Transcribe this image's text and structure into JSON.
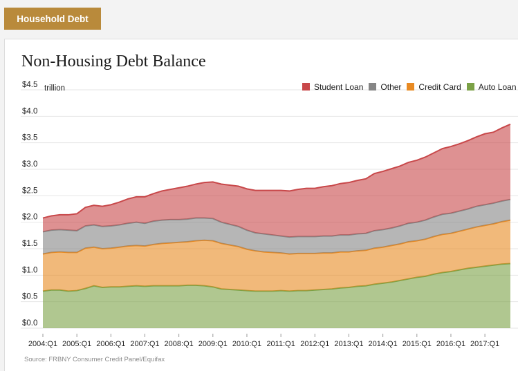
{
  "header": {
    "tab_label": "Household Debt"
  },
  "source": "Source: FRBNY Consumer Credit Panel/Equifax",
  "chart_data": {
    "type": "area",
    "stacked": true,
    "title": "Non-Housing Debt Balance",
    "ylabel": "trillion",
    "ylim": [
      0,
      4.5
    ],
    "yticks": [
      0,
      0.5,
      1.0,
      1.5,
      2.0,
      2.5,
      3.0,
      3.5,
      4.0,
      4.5
    ],
    "ytick_labels": [
      "$0.0",
      "$0.5",
      "$1.0",
      "$1.5",
      "$2.0",
      "$2.5",
      "$3.0",
      "$3.5",
      "$4.0",
      "$4.5"
    ],
    "xlim": [
      2004.0,
      2017.75
    ],
    "xticks": [
      2004,
      2005,
      2006,
      2007,
      2008,
      2009,
      2010,
      2011,
      2012,
      2013,
      2014,
      2015,
      2016,
      2017
    ],
    "xtick_labels": [
      "2004:Q1",
      "2005:Q1",
      "2006:Q1",
      "2007:Q1",
      "2008:Q1",
      "2009:Q1",
      "2010:Q1",
      "2011:Q1",
      "2012:Q1",
      "2013:Q1",
      "2014:Q1",
      "2015:Q1",
      "2016:Q1",
      "2017:Q1"
    ],
    "grid": true,
    "legend_position": "top-right",
    "x": [
      2004.0,
      2004.25,
      2004.5,
      2004.75,
      2005.0,
      2005.25,
      2005.5,
      2005.75,
      2006.0,
      2006.25,
      2006.5,
      2006.75,
      2007.0,
      2007.25,
      2007.5,
      2007.75,
      2008.0,
      2008.25,
      2008.5,
      2008.75,
      2009.0,
      2009.25,
      2009.5,
      2009.75,
      2010.0,
      2010.25,
      2010.5,
      2010.75,
      2011.0,
      2011.25,
      2011.5,
      2011.75,
      2012.0,
      2012.25,
      2012.5,
      2012.75,
      2013.0,
      2013.25,
      2013.5,
      2013.75,
      2014.0,
      2014.25,
      2014.5,
      2014.75,
      2015.0,
      2015.25,
      2015.5,
      2015.75,
      2016.0,
      2016.25,
      2016.5,
      2016.75,
      2017.0,
      2017.25,
      2017.5,
      2017.75
    ],
    "series": [
      {
        "name": "Auto Loan",
        "color": "#7ba146",
        "values": [
          0.7,
          0.72,
          0.72,
          0.7,
          0.71,
          0.75,
          0.8,
          0.77,
          0.78,
          0.78,
          0.79,
          0.8,
          0.79,
          0.8,
          0.8,
          0.8,
          0.8,
          0.81,
          0.81,
          0.8,
          0.78,
          0.74,
          0.73,
          0.72,
          0.71,
          0.7,
          0.7,
          0.7,
          0.71,
          0.7,
          0.71,
          0.71,
          0.72,
          0.73,
          0.74,
          0.76,
          0.77,
          0.79,
          0.8,
          0.83,
          0.85,
          0.87,
          0.9,
          0.93,
          0.96,
          0.98,
          1.02,
          1.05,
          1.07,
          1.1,
          1.13,
          1.15,
          1.17,
          1.19,
          1.21,
          1.22
        ]
      },
      {
        "name": "Credit Card",
        "color": "#e88a22",
        "values": [
          0.7,
          0.71,
          0.72,
          0.73,
          0.72,
          0.76,
          0.73,
          0.73,
          0.73,
          0.75,
          0.76,
          0.76,
          0.76,
          0.78,
          0.8,
          0.81,
          0.82,
          0.82,
          0.84,
          0.86,
          0.87,
          0.86,
          0.84,
          0.82,
          0.78,
          0.76,
          0.74,
          0.73,
          0.71,
          0.7,
          0.7,
          0.7,
          0.69,
          0.69,
          0.68,
          0.68,
          0.67,
          0.67,
          0.67,
          0.68,
          0.68,
          0.69,
          0.69,
          0.7,
          0.69,
          0.7,
          0.71,
          0.72,
          0.72,
          0.73,
          0.74,
          0.76,
          0.77,
          0.78,
          0.8,
          0.82
        ]
      },
      {
        "name": "Other",
        "color": "#868686",
        "values": [
          0.42,
          0.42,
          0.42,
          0.42,
          0.41,
          0.42,
          0.42,
          0.42,
          0.42,
          0.42,
          0.43,
          0.44,
          0.43,
          0.44,
          0.44,
          0.44,
          0.43,
          0.43,
          0.43,
          0.42,
          0.42,
          0.4,
          0.39,
          0.38,
          0.36,
          0.34,
          0.34,
          0.33,
          0.32,
          0.32,
          0.32,
          0.32,
          0.32,
          0.32,
          0.32,
          0.32,
          0.32,
          0.32,
          0.32,
          0.33,
          0.33,
          0.33,
          0.34,
          0.35,
          0.35,
          0.36,
          0.37,
          0.38,
          0.38,
          0.38,
          0.38,
          0.39,
          0.39,
          0.39,
          0.39,
          0.39
        ]
      },
      {
        "name": "Student Loan",
        "color": "#c8484a",
        "values": [
          0.26,
          0.27,
          0.28,
          0.29,
          0.32,
          0.35,
          0.37,
          0.38,
          0.4,
          0.43,
          0.46,
          0.48,
          0.5,
          0.52,
          0.55,
          0.57,
          0.6,
          0.62,
          0.64,
          0.67,
          0.69,
          0.72,
          0.74,
          0.76,
          0.78,
          0.8,
          0.82,
          0.84,
          0.86,
          0.87,
          0.89,
          0.91,
          0.91,
          0.93,
          0.95,
          0.97,
          0.99,
          1.01,
          1.03,
          1.08,
          1.1,
          1.12,
          1.13,
          1.15,
          1.17,
          1.19,
          1.21,
          1.24,
          1.26,
          1.27,
          1.29,
          1.31,
          1.34,
          1.34,
          1.38,
          1.42
        ]
      }
    ],
    "legend_order": [
      "Student Loan",
      "Other",
      "Credit Card",
      "Auto Loan"
    ]
  }
}
